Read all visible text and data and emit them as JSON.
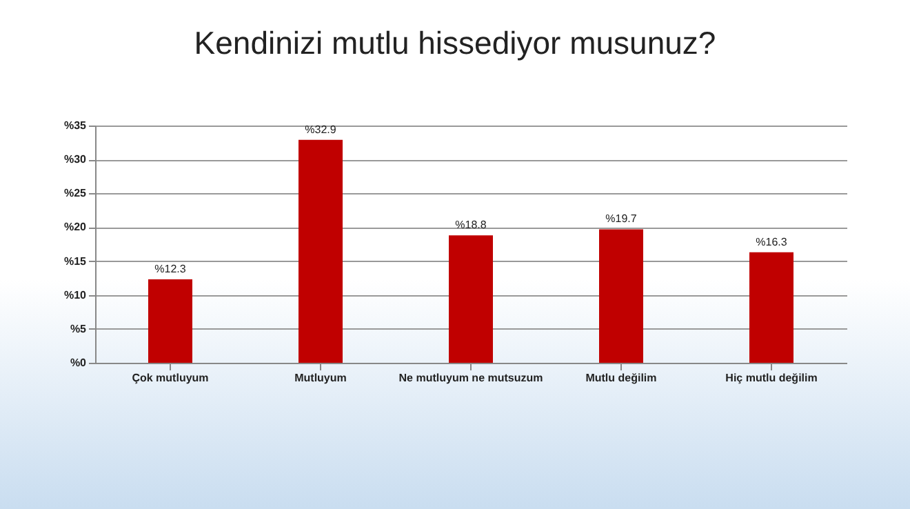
{
  "chart_data": {
    "type": "bar",
    "title": "Kendinizi mutlu hissediyor musunuz?",
    "categories": [
      "Çok mutluyum",
      "Mutluyum",
      "Ne mutluyum ne mutsuzum",
      "Mutlu değilim",
      "Hiç mutlu değilim"
    ],
    "values": [
      12.3,
      32.9,
      18.8,
      19.7,
      16.3
    ],
    "value_labels": [
      "%12.3",
      "%32.9",
      "%18.8",
      "%19.7",
      "%16.3"
    ],
    "color": "#c00000",
    "ylim": [
      0,
      35
    ],
    "yticks": [
      {
        "value": 0,
        "label": "%0"
      },
      {
        "value": 5,
        "label": "%5"
      },
      {
        "value": 10,
        "label": "%10"
      },
      {
        "value": 15,
        "label": "%15"
      },
      {
        "value": 20,
        "label": "%20"
      },
      {
        "value": 25,
        "label": "%25"
      },
      {
        "value": 30,
        "label": "%30"
      },
      {
        "value": 35,
        "label": "%35"
      }
    ],
    "grid": "y"
  }
}
